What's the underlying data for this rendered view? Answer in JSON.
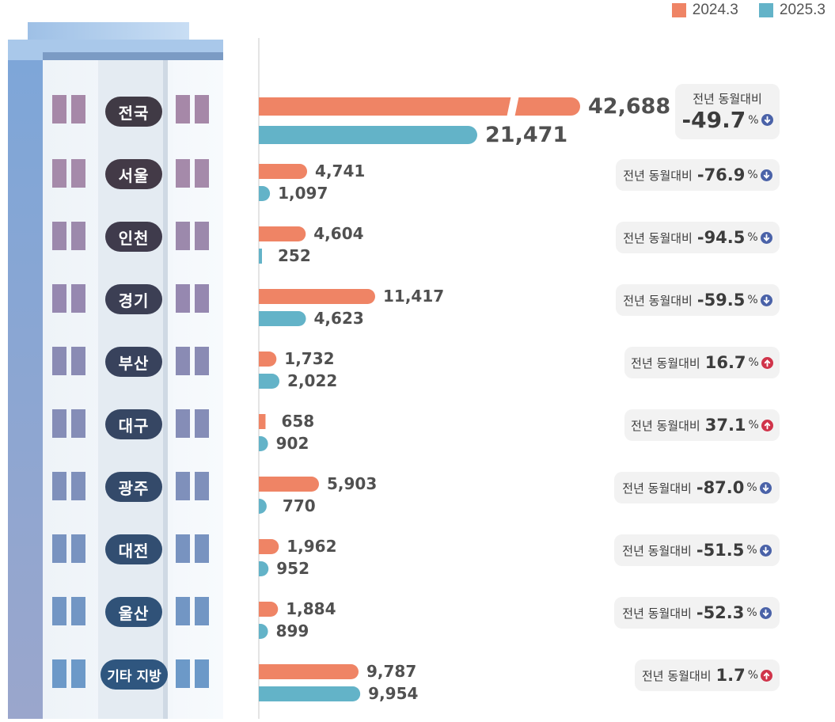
{
  "legend": [
    {
      "label": "2024.3",
      "color": "#ef8465"
    },
    {
      "label": "2025.3",
      "color": "#63b3c8"
    }
  ],
  "colors": {
    "bar_2024": "#ef8465",
    "bar_2025": "#63b3c8",
    "down_icon": "#4a62a8",
    "up_icon": "#d0344a"
  },
  "compare_label": "전년 동월대비",
  "chart_data": {
    "type": "bar",
    "orientation": "horizontal",
    "categories": [
      "전국",
      "서울",
      "인천",
      "경기",
      "부산",
      "대구",
      "광주",
      "대전",
      "울산",
      "기타 지방"
    ],
    "series": [
      {
        "name": "2024.3",
        "values": [
          42688,
          4741,
          4604,
          11417,
          1732,
          658,
          5903,
          1962,
          1884,
          9787
        ]
      },
      {
        "name": "2025.3",
        "values": [
          21471,
          1097,
          252,
          4623,
          2022,
          902,
          770,
          952,
          899,
          9954
        ]
      }
    ],
    "value_labels": [
      [
        "42,688",
        "21,471"
      ],
      [
        "4,741",
        "1,097"
      ],
      [
        "4,604",
        "252"
      ],
      [
        "11,417",
        "4,623"
      ],
      [
        "1,732",
        "2,022"
      ],
      [
        "658",
        "902"
      ],
      [
        "5,903",
        "770"
      ],
      [
        "1,962",
        "952"
      ],
      [
        "1,884",
        "899"
      ],
      [
        "9,787",
        "9,954"
      ]
    ],
    "yoy_change": [
      "-49.7",
      "-76.9",
      "-94.5",
      "-59.5",
      "16.7",
      "37.1",
      "-87.0",
      "-51.5",
      "-52.3",
      "1.7"
    ],
    "yoy_unit": "%",
    "yoy_direction": [
      "down",
      "down",
      "down",
      "down",
      "up",
      "up",
      "down",
      "down",
      "down",
      "up"
    ],
    "axis_break_on_first_row": true
  }
}
